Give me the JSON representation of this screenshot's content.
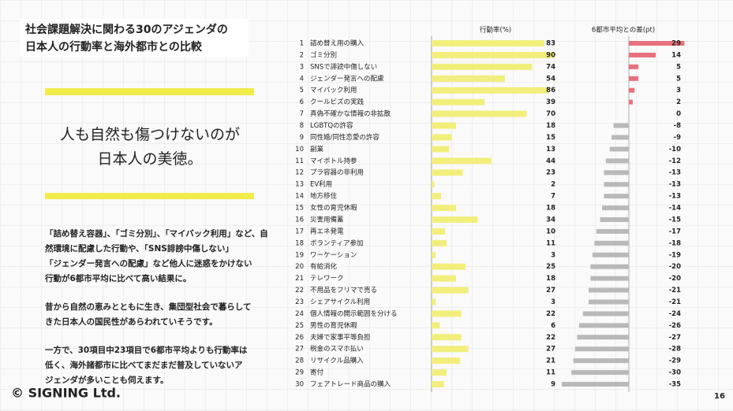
{
  "header": {
    "title": [
      "社会課題解決に関わる30のアジェンダの",
      "日本人の行動率と海外都市との比較"
    ]
  },
  "tagline": [
    "人も自然も傷つけないのが",
    "日本人の美徳。"
  ],
  "paragraphs": [
    [
      "「詰め替え容器」、「ゴミ分別」、「マイバック利用」など、自",
      "然環境に配慮した行動や、「SNS誹謗中傷しない」",
      "「ジェンダー発言への配慮」など他人に迷惑をかけない",
      "行動が6都市平均に比べて高い結果に。"
    ],
    [
      "昔から自然の恵みとともに生き、集団型社会で暮らして",
      "きた日本人の国民性があらわれていそうです。"
    ],
    [
      "一方で、30項目中23項目で6都市平均よりも行動率は",
      "低く、海外諸都市に比べてまだまだ普及していないア",
      "ジェンダが多いことも伺えます。"
    ]
  ],
  "footer": "© SIGNING Ltd.",
  "page_number": "16",
  "chart_data": {
    "type": "bar",
    "ranks": [
      "1",
      "2",
      "3",
      "4",
      "5",
      "6",
      "7",
      "8",
      "9",
      "10",
      "11",
      "12",
      "13",
      "14",
      "15",
      "16",
      "17",
      "18",
      "19",
      "20",
      "21",
      "22",
      "23",
      "24",
      "25",
      "26",
      "27",
      "28",
      "29",
      "30"
    ],
    "categories": [
      "詰め替え用の購入",
      "ゴミ分別",
      "SNSで誹謗中傷しない",
      "ジェンダー発言への配慮",
      "マイバック利用",
      "クールビズの実践",
      "真偽不確かな情報の非拡散",
      "LGBTQの許容",
      "同性婚/同性恋愛の許容",
      "副業",
      "マイボトル持参",
      "プラ容器の非利用",
      "EV利用",
      "地方移住",
      "女性の育児休暇",
      "災害用備蓄",
      "再エネ発電",
      "ボランティア参加",
      "ワーケーション",
      "有給消化",
      "テレワーク",
      "不用品をフリマで売る",
      "シェアサイクル利用",
      "個人情報の開示範囲を分ける",
      "男性の育児休暇",
      "夫婦で家事平等負担",
      "税金のスマホ払い",
      "リサイクル品購入",
      "寄付",
      "フェアトレード商品の購入"
    ],
    "series": [
      {
        "name": "行動率(%)",
        "color": "#f2ee7c",
        "values": [
          83,
          90,
          74,
          54,
          86,
          39,
          70,
          18,
          15,
          13,
          44,
          23,
          2,
          7,
          18,
          34,
          10,
          11,
          3,
          25,
          18,
          27,
          3,
          22,
          6,
          22,
          27,
          21,
          11,
          9
        ]
      },
      {
        "name": "6都市平均との差(pt)",
        "color": "#e8707c",
        "negative_color": "#b9b9b9",
        "values": [
          29,
          14,
          5,
          5,
          3,
          2,
          0,
          -8,
          -9,
          -10,
          -12,
          -13,
          -13,
          -13,
          -14,
          -15,
          -17,
          -18,
          -19,
          -20,
          -20,
          -21,
          -21,
          -24,
          -26,
          -27,
          -28,
          -29,
          -30,
          -35
        ]
      }
    ]
  }
}
